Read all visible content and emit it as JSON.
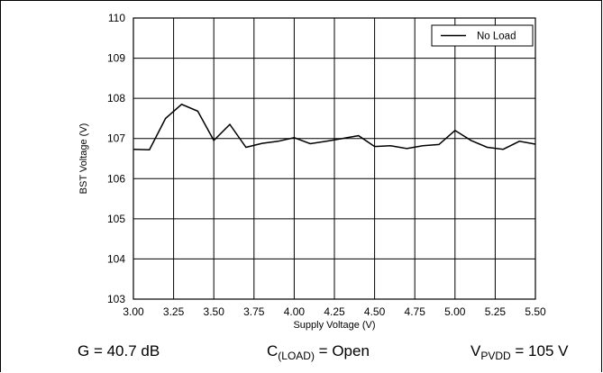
{
  "chart_data": {
    "type": "line",
    "xlabel": "Supply Voltage (V)",
    "ylabel": "BST Voltage (V)",
    "xlim": [
      3.0,
      5.5
    ],
    "ylim": [
      103,
      110
    ],
    "x_ticks": [
      "3.00",
      "3.25",
      "3.50",
      "3.75",
      "4.00",
      "4.25",
      "4.50",
      "4.75",
      "5.00",
      "5.25",
      "5.50"
    ],
    "y_ticks": [
      "103",
      "104",
      "105",
      "106",
      "107",
      "108",
      "109",
      "110"
    ],
    "grid": true,
    "legend_position": "top-right",
    "series": [
      {
        "name": "No Load",
        "color": "#000000",
        "x": [
          3.0,
          3.1,
          3.2,
          3.3,
          3.4,
          3.5,
          3.6,
          3.7,
          3.8,
          3.9,
          4.0,
          4.1,
          4.2,
          4.3,
          4.4,
          4.5,
          4.6,
          4.7,
          4.8,
          4.9,
          5.0,
          5.1,
          5.2,
          5.3,
          5.4,
          5.5
        ],
        "y": [
          106.73,
          106.72,
          107.5,
          107.85,
          107.68,
          106.95,
          107.35,
          106.78,
          106.88,
          106.93,
          107.02,
          106.87,
          106.93,
          107.0,
          107.07,
          106.8,
          106.82,
          106.75,
          106.82,
          106.85,
          107.2,
          106.95,
          106.78,
          106.73,
          106.93,
          106.86
        ]
      }
    ]
  },
  "conditions": {
    "gain": "G = 40.7 dB",
    "load_prefix": "C",
    "load_sub": "(LOAD)",
    "load_value": " = Open",
    "supply_prefix": "V",
    "supply_sub": "PVDD",
    "supply_value": " = 105 V"
  }
}
